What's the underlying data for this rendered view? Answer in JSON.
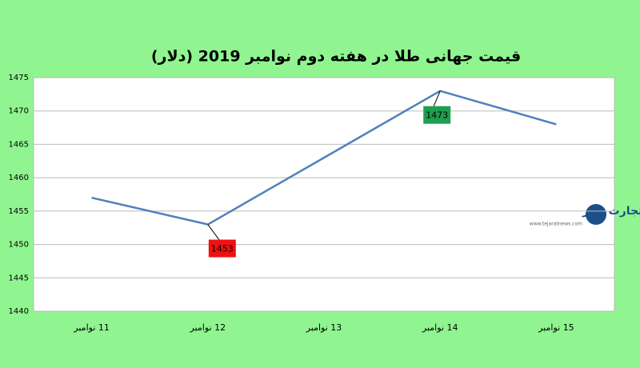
{
  "chart_data": {
    "type": "line",
    "title": "قیمت جهانی طلا در هفته دوم نوامبر 2019 (دلار)",
    "categories": [
      "11 نوامبر",
      "12 نوامبر",
      "13 نوامبر",
      "14 نوامبر",
      "15 نوامبر"
    ],
    "series": [
      {
        "name": "قیمت",
        "color": "#4f81bd",
        "values": [
          1457,
          1453,
          1463,
          1473,
          1468
        ],
        "label_colors": [
          null,
          "#ee1111",
          null,
          "#1e9e4f",
          null
        ]
      }
    ],
    "ylim": [
      1440,
      1475
    ],
    "yticks": [
      1440,
      1445,
      1450,
      1455,
      1460,
      1465,
      1470,
      1475
    ],
    "grid": true
  },
  "watermark": {
    "title": "تجارت نیوز",
    "url": "www.tejaratnews.com"
  }
}
